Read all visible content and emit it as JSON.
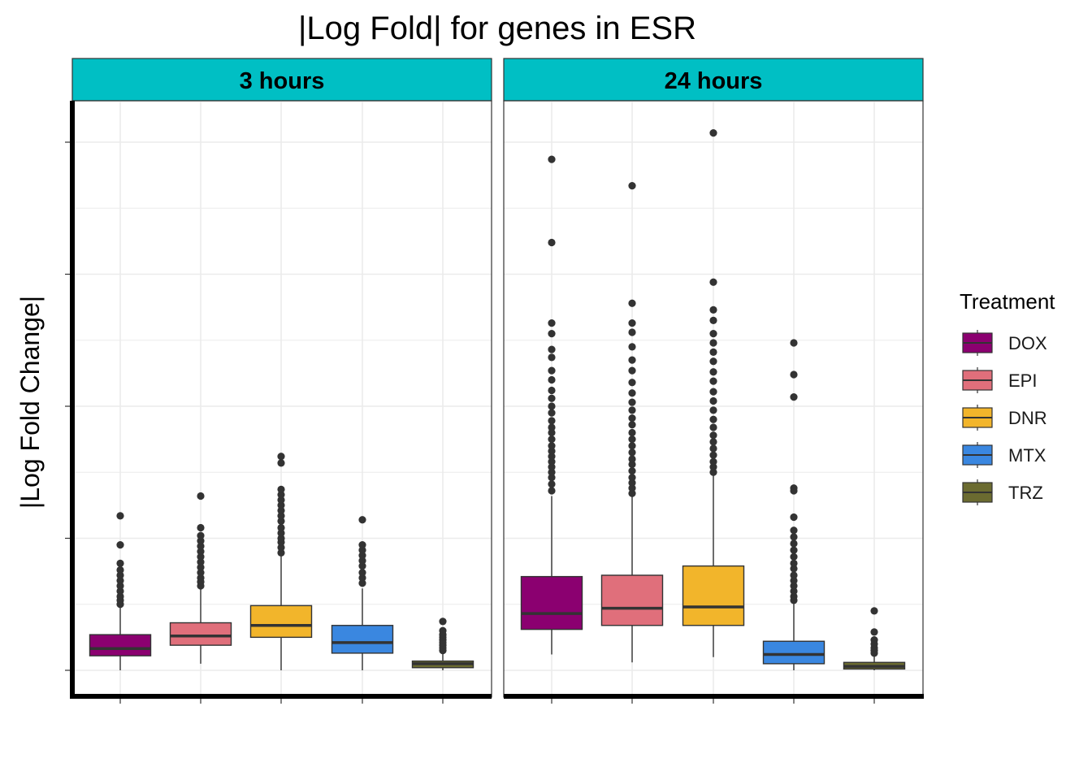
{
  "chart_data": {
    "type": "boxplot",
    "title": "|Log Fold| for genes in ESR",
    "ylabel": "|Log Fold Change|",
    "xlabel": "",
    "x_tick_labels_visible": false,
    "y_tick_labels_visible": false,
    "ylim": [
      -0.2,
      4.0
    ],
    "grid": true,
    "facets": [
      {
        "label": "3 hours",
        "boxes": [
          {
            "treatment": "DOX",
            "whisker_low": 0.0,
            "q1": 0.11,
            "median": 0.165,
            "q3": 0.27,
            "whisker_high": 0.49,
            "outliers": [
              0.5,
              0.53,
              0.56,
              0.6,
              0.64,
              0.68,
              0.72,
              0.76,
              0.81,
              0.95,
              1.17
            ]
          },
          {
            "treatment": "EPI",
            "whisker_low": 0.05,
            "q1": 0.19,
            "median": 0.26,
            "q3": 0.36,
            "whisker_high": 0.62,
            "outliers": [
              0.64,
              0.67,
              0.7,
              0.74,
              0.78,
              0.82,
              0.86,
              0.9,
              0.94,
              0.98,
              1.02,
              1.08,
              1.32
            ]
          },
          {
            "treatment": "DNR",
            "whisker_low": 0.0,
            "q1": 0.25,
            "median": 0.34,
            "q3": 0.49,
            "whisker_high": 0.87,
            "outliers": [
              0.89,
              0.93,
              0.97,
              1.0,
              1.04,
              1.08,
              1.13,
              1.17,
              1.21,
              1.25,
              1.29,
              1.33,
              1.37,
              1.57,
              1.62
            ]
          },
          {
            "treatment": "MTX",
            "whisker_low": 0.0,
            "q1": 0.13,
            "median": 0.21,
            "q3": 0.34,
            "whisker_high": 0.62,
            "outliers": [
              0.66,
              0.7,
              0.74,
              0.79,
              0.83,
              0.87,
              0.91,
              0.95,
              1.14
            ]
          },
          {
            "treatment": "TRZ",
            "whisker_low": 0.0,
            "q1": 0.02,
            "median": 0.05,
            "q3": 0.07,
            "whisker_high": 0.14,
            "outliers": [
              0.15,
              0.17,
              0.19,
              0.21,
              0.23,
              0.25,
              0.27,
              0.3,
              0.37
            ]
          }
        ]
      },
      {
        "label": "24 hours",
        "boxes": [
          {
            "treatment": "DOX",
            "whisker_low": 0.12,
            "q1": 0.31,
            "median": 0.43,
            "q3": 0.71,
            "whisker_high": 1.32,
            "outliers": [
              1.36,
              1.41,
              1.46,
              1.5,
              1.54,
              1.58,
              1.62,
              1.66,
              1.7,
              1.75,
              1.8,
              1.84,
              1.89,
              1.95,
              2.0,
              2.06,
              2.12,
              2.2,
              2.27,
              2.37,
              2.43,
              2.55,
              2.63,
              3.24,
              3.87
            ]
          },
          {
            "treatment": "EPI",
            "whisker_low": 0.06,
            "q1": 0.34,
            "median": 0.47,
            "q3": 0.72,
            "whisker_high": 1.32,
            "outliers": [
              1.34,
              1.38,
              1.42,
              1.46,
              1.51,
              1.56,
              1.6,
              1.65,
              1.7,
              1.75,
              1.8,
              1.86,
              1.91,
              1.97,
              2.03,
              2.1,
              2.18,
              2.27,
              2.35,
              2.45,
              2.56,
              2.63,
              2.78,
              3.67
            ]
          },
          {
            "treatment": "DNR",
            "whisker_low": 0.1,
            "q1": 0.34,
            "median": 0.48,
            "q3": 0.79,
            "whisker_high": 1.48,
            "outliers": [
              1.5,
              1.54,
              1.58,
              1.63,
              1.68,
              1.73,
              1.78,
              1.84,
              1.9,
              1.97,
              2.04,
              2.11,
              2.19,
              2.26,
              2.34,
              2.41,
              2.48,
              2.55,
              2.65,
              2.73,
              2.94,
              4.07
            ]
          },
          {
            "treatment": "MTX",
            "whisker_low": 0.0,
            "q1": 0.05,
            "median": 0.12,
            "q3": 0.22,
            "whisker_high": 0.52,
            "outliers": [
              0.53,
              0.56,
              0.6,
              0.64,
              0.68,
              0.72,
              0.77,
              0.81,
              0.86,
              0.91,
              0.96,
              1.01,
              1.06,
              1.16,
              1.36,
              1.38,
              2.07,
              2.24,
              2.48
            ]
          },
          {
            "treatment": "TRZ",
            "whisker_low": 0.0,
            "q1": 0.01,
            "median": 0.03,
            "q3": 0.06,
            "whisker_high": 0.12,
            "outliers": [
              0.13,
              0.15,
              0.17,
              0.2,
              0.23,
              0.29,
              0.45
            ]
          }
        ]
      }
    ],
    "legend": {
      "title": "Treatment",
      "placement": "right",
      "entries": [
        {
          "label": "DOX",
          "color": "#8b0070"
        },
        {
          "label": "EPI",
          "color": "#e06f7b"
        },
        {
          "label": "DNR",
          "color": "#f2b52b"
        },
        {
          "label": "MTX",
          "color": "#3a87e0"
        },
        {
          "label": "TRZ",
          "color": "#6b6b30"
        }
      ]
    },
    "colors": {
      "strip_fill": "#00bfc4",
      "panel_border": "#333333",
      "grid": "#ebebeb",
      "outline": "#333333",
      "outlier": "#333333"
    }
  }
}
